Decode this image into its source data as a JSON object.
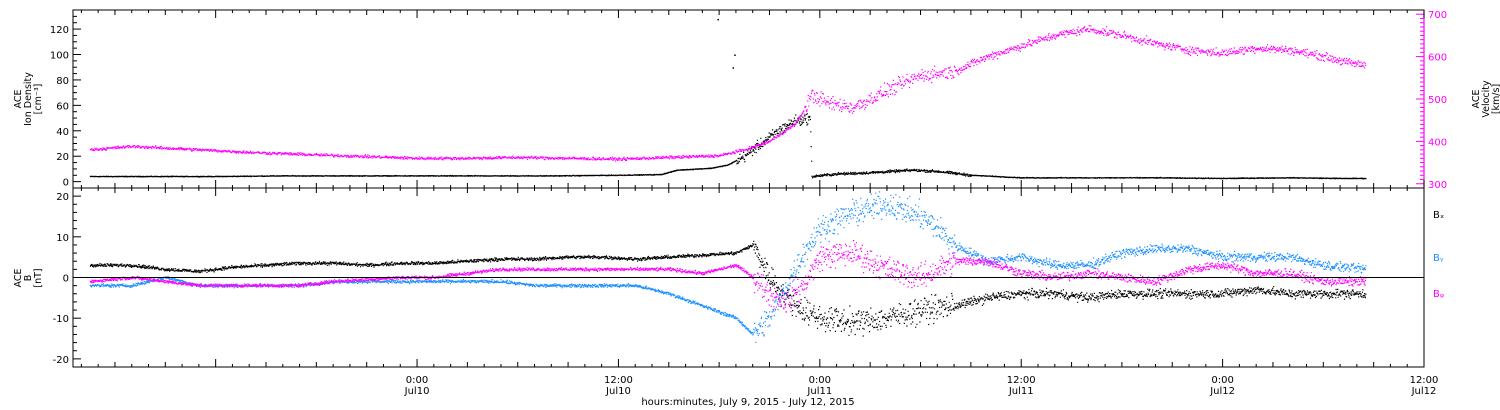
{
  "chart_data": [
    {
      "type": "scatter",
      "panel": "plasma",
      "ylabel_lines": [
        "ACE",
        "Ion Density",
        "[cm⁻³]"
      ],
      "y2label_lines": [
        "ACE",
        "Velocity",
        "[km/s]"
      ],
      "ylim": [
        -5,
        135
      ],
      "y2lim": [
        290,
        710
      ],
      "yticks": [
        0,
        20,
        40,
        60,
        80,
        100,
        120
      ],
      "y2ticks": [
        300,
        400,
        500,
        600,
        700
      ],
      "colors": {
        "density": "#000000",
        "velocity": "#ff00ff"
      },
      "density_breakpoints": [
        [
          -19.5,
          4
        ],
        [
          -16,
          4
        ],
        [
          -12,
          4
        ],
        [
          -8,
          4.5
        ],
        [
          -4,
          4.5
        ],
        [
          0,
          4.5
        ],
        [
          4,
          4.5
        ],
        [
          8,
          4.5
        ],
        [
          12,
          5
        ],
        [
          14.5,
          5.5
        ],
        [
          15.5,
          9
        ],
        [
          17.5,
          10.5
        ],
        [
          18.5,
          13
        ],
        [
          19.5,
          20
        ],
        [
          20.5,
          30
        ],
        [
          21.5,
          40
        ],
        [
          22.5,
          48
        ],
        [
          23.4,
          50
        ],
        [
          23.5,
          4
        ],
        [
          25,
          6
        ],
        [
          27,
          7
        ],
        [
          29.5,
          9
        ],
        [
          31,
          8
        ],
        [
          33,
          5
        ],
        [
          36,
          3
        ],
        [
          40,
          3
        ],
        [
          44,
          3
        ],
        [
          48,
          2.5
        ],
        [
          52,
          3
        ],
        [
          55,
          2.5
        ],
        [
          56.5,
          2.5
        ]
      ],
      "velocity_breakpoints": [
        [
          -19.5,
          380
        ],
        [
          -17,
          388
        ],
        [
          -14,
          382
        ],
        [
          -10,
          374
        ],
        [
          -6,
          368
        ],
        [
          -3,
          364
        ],
        [
          0,
          360
        ],
        [
          3,
          360
        ],
        [
          6,
          362
        ],
        [
          9,
          360
        ],
        [
          12,
          358
        ],
        [
          15,
          362
        ],
        [
          18,
          366
        ],
        [
          19.5,
          380
        ],
        [
          21,
          400
        ],
        [
          22.5,
          440
        ],
        [
          23,
          470
        ],
        [
          23.5,
          510
        ],
        [
          24.5,
          490
        ],
        [
          26,
          480
        ],
        [
          28,
          520
        ],
        [
          30,
          555
        ],
        [
          32,
          565
        ],
        [
          34,
          600
        ],
        [
          36,
          625
        ],
        [
          38,
          650
        ],
        [
          40,
          665
        ],
        [
          42,
          650
        ],
        [
          44,
          630
        ],
        [
          46,
          615
        ],
        [
          48,
          608
        ],
        [
          50,
          620
        ],
        [
          52,
          615
        ],
        [
          54,
          600
        ],
        [
          55.5,
          585
        ],
        [
          56.5,
          580
        ]
      ],
      "outlier_points": [
        [
          17.9,
          128
        ],
        [
          18.9,
          100
        ],
        [
          18.8,
          90
        ],
        [
          22.8,
          45
        ]
      ]
    },
    {
      "type": "scatter",
      "panel": "magnetic-field",
      "ylabel_lines": [
        "ACE",
        "B",
        "[nT]"
      ],
      "ylim": [
        -22,
        22
      ],
      "yticks": [
        -20,
        -10,
        0,
        10,
        20
      ],
      "zero_line": true,
      "series": [
        {
          "name": "Bₓ",
          "color": "#000000",
          "breakpoints": [
            [
              -19.5,
              3
            ],
            [
              -17,
              3
            ],
            [
              -15,
              2
            ],
            [
              -13,
              1.5
            ],
            [
              -11,
              2.5
            ],
            [
              -9,
              3
            ],
            [
              -7,
              3.5
            ],
            [
              -5,
              3.5
            ],
            [
              -3,
              3
            ],
            [
              -1,
              3.5
            ],
            [
              1,
              3.5
            ],
            [
              3,
              4
            ],
            [
              5,
              4.5
            ],
            [
              7,
              4.5
            ],
            [
              9,
              5
            ],
            [
              11,
              5
            ],
            [
              13,
              4.5
            ],
            [
              15,
              5
            ],
            [
              17,
              5.5
            ],
            [
              19,
              6
            ],
            [
              20,
              8
            ],
            [
              21,
              0
            ],
            [
              22,
              -5
            ],
            [
              23,
              -8
            ],
            [
              24,
              -10
            ],
            [
              26,
              -11
            ],
            [
              28,
              -10
            ],
            [
              30,
              -8
            ],
            [
              32,
              -7
            ],
            [
              34,
              -5
            ],
            [
              36,
              -4
            ],
            [
              38,
              -4
            ],
            [
              40,
              -5
            ],
            [
              42,
              -4
            ],
            [
              44,
              -4
            ],
            [
              46,
              -4
            ],
            [
              48,
              -4
            ],
            [
              50,
              -3
            ],
            [
              52,
              -4
            ],
            [
              54,
              -4
            ],
            [
              56.5,
              -4
            ]
          ]
        },
        {
          "name": "Bᵧ",
          "color": "#1e90ff",
          "breakpoints": [
            [
              -19.5,
              -2
            ],
            [
              -17,
              -2
            ],
            [
              -15,
              0
            ],
            [
              -13,
              -2
            ],
            [
              -11,
              -2
            ],
            [
              -9,
              -2
            ],
            [
              -7,
              -2
            ],
            [
              -5,
              -1
            ],
            [
              -3,
              -1
            ],
            [
              -1,
              -1
            ],
            [
              1,
              -1
            ],
            [
              3,
              -1
            ],
            [
              5,
              -1
            ],
            [
              7,
              -2
            ],
            [
              9,
              -2
            ],
            [
              11,
              -2
            ],
            [
              13,
              -2
            ],
            [
              15,
              -4
            ],
            [
              17,
              -7
            ],
            [
              19,
              -10
            ],
            [
              20,
              -14
            ],
            [
              21,
              -10
            ],
            [
              22,
              -2
            ],
            [
              23,
              6
            ],
            [
              24,
              12
            ],
            [
              26,
              16
            ],
            [
              28,
              18
            ],
            [
              30,
              15
            ],
            [
              31,
              12
            ],
            [
              32,
              8
            ],
            [
              34,
              4
            ],
            [
              36,
              5
            ],
            [
              38,
              3
            ],
            [
              40,
              3
            ],
            [
              42,
              6
            ],
            [
              44,
              7
            ],
            [
              46,
              7
            ],
            [
              48,
              5
            ],
            [
              50,
              5
            ],
            [
              52,
              5
            ],
            [
              54,
              3
            ],
            [
              56.5,
              2
            ]
          ]
        },
        {
          "name": "Bᵩ",
          "color": "#ff00ff",
          "breakpoints": [
            [
              -19.5,
              -1
            ],
            [
              -17,
              0
            ],
            [
              -15,
              -1
            ],
            [
              -13,
              -2
            ],
            [
              -11,
              -2
            ],
            [
              -9,
              -2
            ],
            [
              -7,
              -2
            ],
            [
              -5,
              -1
            ],
            [
              -3,
              -0.5
            ],
            [
              -1,
              0
            ],
            [
              1,
              0
            ],
            [
              3,
              1
            ],
            [
              5,
              2
            ],
            [
              7,
              2
            ],
            [
              9,
              2
            ],
            [
              11,
              2
            ],
            [
              13,
              2
            ],
            [
              15,
              2
            ],
            [
              17,
              1
            ],
            [
              19,
              3
            ],
            [
              20,
              0
            ],
            [
              21,
              -4
            ],
            [
              22,
              -6
            ],
            [
              23,
              -2
            ],
            [
              24,
              5
            ],
            [
              26,
              6
            ],
            [
              28,
              2
            ],
            [
              30,
              0
            ],
            [
              32,
              4
            ],
            [
              34,
              4
            ],
            [
              36,
              1
            ],
            [
              38,
              0
            ],
            [
              40,
              1
            ],
            [
              42,
              0
            ],
            [
              44,
              -1
            ],
            [
              46,
              2
            ],
            [
              48,
              3
            ],
            [
              50,
              1
            ],
            [
              52,
              1
            ],
            [
              54,
              -1
            ],
            [
              56.5,
              -1
            ]
          ]
        }
      ]
    }
  ],
  "x_axis": {
    "title": "hours:minutes, July  9, 2015 - July 12, 2015",
    "xlim": [
      -20.5,
      60
    ],
    "major_ticks": [
      0,
      12,
      24,
      36,
      48,
      60
    ],
    "tick_labels": [
      {
        "time": "0:00",
        "date": "Jul10"
      },
      {
        "time": "12:00",
        "date": "Jul10"
      },
      {
        "time": "0:00",
        "date": "Jul11"
      },
      {
        "time": "12:00",
        "date": "Jul11"
      },
      {
        "time": "0:00",
        "date": "Jul12"
      },
      {
        "time": "12:00",
        "date": "Jul12"
      }
    ]
  }
}
